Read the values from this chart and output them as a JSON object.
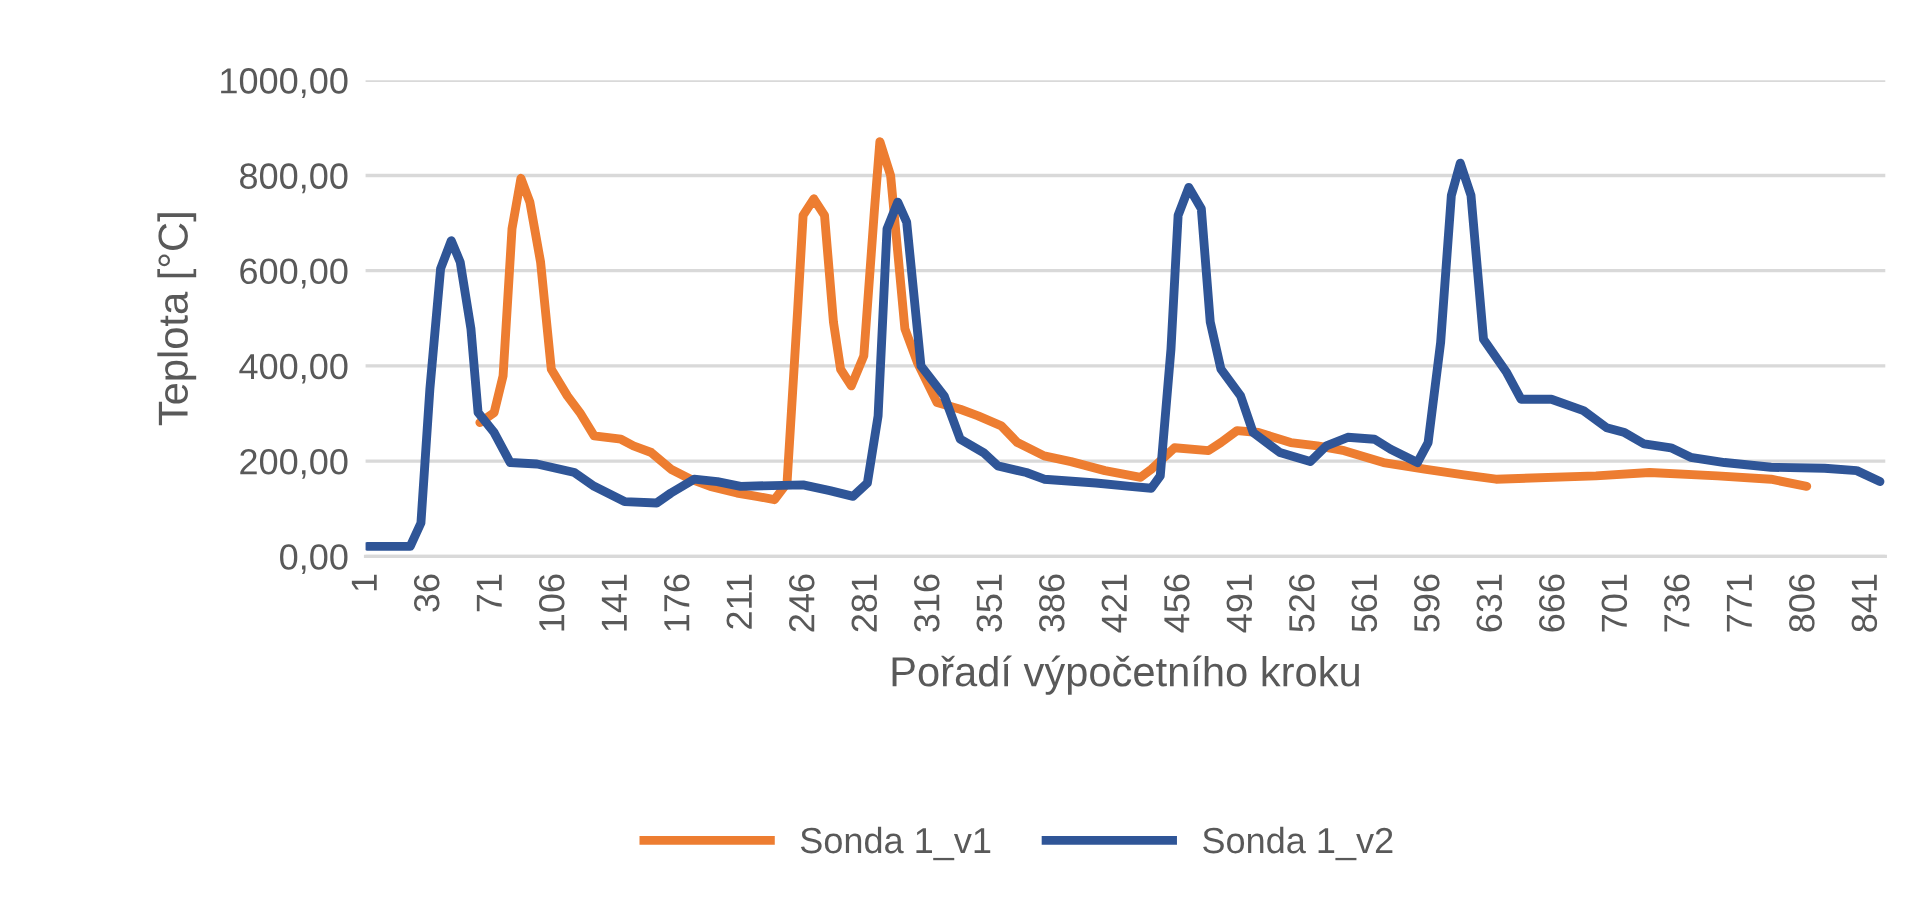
{
  "chart_data": {
    "type": "line",
    "xlabel": "Pořadí výpočetního kroku",
    "ylabel": "Teplota [°C]",
    "xlim": [
      0,
      851
    ],
    "xticks": [
      1,
      36,
      71,
      106,
      141,
      176,
      211,
      246,
      281,
      316,
      351,
      386,
      421,
      456,
      491,
      526,
      561,
      596,
      631,
      666,
      701,
      736,
      771,
      806,
      841
    ],
    "ylim": [
      0,
      1000
    ],
    "yticks": [
      {
        "value": 0,
        "label": "0,00"
      },
      {
        "value": 200,
        "label": "200,00"
      },
      {
        "value": 400,
        "label": "400,00"
      },
      {
        "value": 600,
        "label": "600,00"
      },
      {
        "value": 800,
        "label": "800,00"
      },
      {
        "value": 1000,
        "label": "1000,00"
      }
    ],
    "grid": "y",
    "legend": "bottom",
    "marker": "none",
    "line_style": "solid",
    "series": [
      {
        "name": "Sonda 1_v1",
        "color": "#ed7d31",
        "x": [
          64,
          72,
          77,
          82,
          87,
          92,
          98,
          104,
          113,
          120,
          128,
          143,
          150,
          160,
          171,
          182,
          193,
          208,
          219,
          229,
          236,
          242,
          245,
          251,
          257,
          262,
          266,
          272,
          279,
          285,
          288,
          294,
          302,
          309,
          320,
          333,
          343,
          356,
          365,
          380,
          395,
          414,
          434,
          440,
          453,
          472,
          479,
          488,
          500,
          518,
          533,
          548,
          570,
          593,
          615,
          633,
          689,
          719,
          757,
          787,
          807
        ],
        "values": [
          281,
          302,
          379,
          688,
          794,
          744,
          618,
          393,
          337,
          302,
          253,
          246,
          232,
          218,
          183,
          162,
          147,
          133,
          126,
          119,
          154,
          520,
          716,
          751,
          716,
          492,
          393,
          358,
          421,
          730,
          871,
          800,
          478,
          407,
          323,
          309,
          295,
          274,
          239,
          211,
          199,
          180,
          166,
          183,
          228,
          222,
          239,
          264,
          260,
          239,
          232,
          222,
          197,
          183,
          171,
          162,
          169,
          176,
          169,
          162,
          147
        ]
      },
      {
        "name": "Sonda 1_v2",
        "color": "#2f5597",
        "x": [
          1,
          25,
          31,
          36,
          42,
          48,
          53,
          59,
          63,
          72,
          81,
          96,
          117,
          128,
          145,
          163,
          171,
          184,
          197,
          210,
          245,
          260,
          273,
          281,
          287,
          292,
          298,
          303,
          311,
          324,
          333,
          346,
          354,
          370,
          380,
          409,
          428,
          440,
          445,
          451,
          455,
          461,
          468,
          473,
          479,
          490,
          497,
          512,
          529,
          538,
          550,
          565,
          574,
          589,
          595,
          602,
          608,
          613,
          619,
          626,
          639,
          647,
          664,
          682,
          695,
          705,
          716,
          731,
          742,
          761,
          787,
          817,
          835,
          848
        ],
        "values": [
          21,
          21,
          70,
          351,
          604,
          663,
          618,
          478,
          302,
          260,
          197,
          194,
          176,
          147,
          115,
          112,
          133,
          162,
          157,
          147,
          150,
          138,
          126,
          154,
          295,
          688,
          744,
          702,
          400,
          337,
          246,
          218,
          190,
          176,
          162,
          154,
          147,
          143,
          169,
          435,
          716,
          775,
          730,
          492,
          393,
          337,
          260,
          218,
          199,
          232,
          250,
          246,
          225,
          197,
          239,
          449,
          758,
          826,
          758,
          456,
          386,
          330,
          330,
          306,
          270,
          260,
          236,
          228,
          208,
          197,
          187,
          185,
          180,
          157
        ]
      }
    ]
  }
}
